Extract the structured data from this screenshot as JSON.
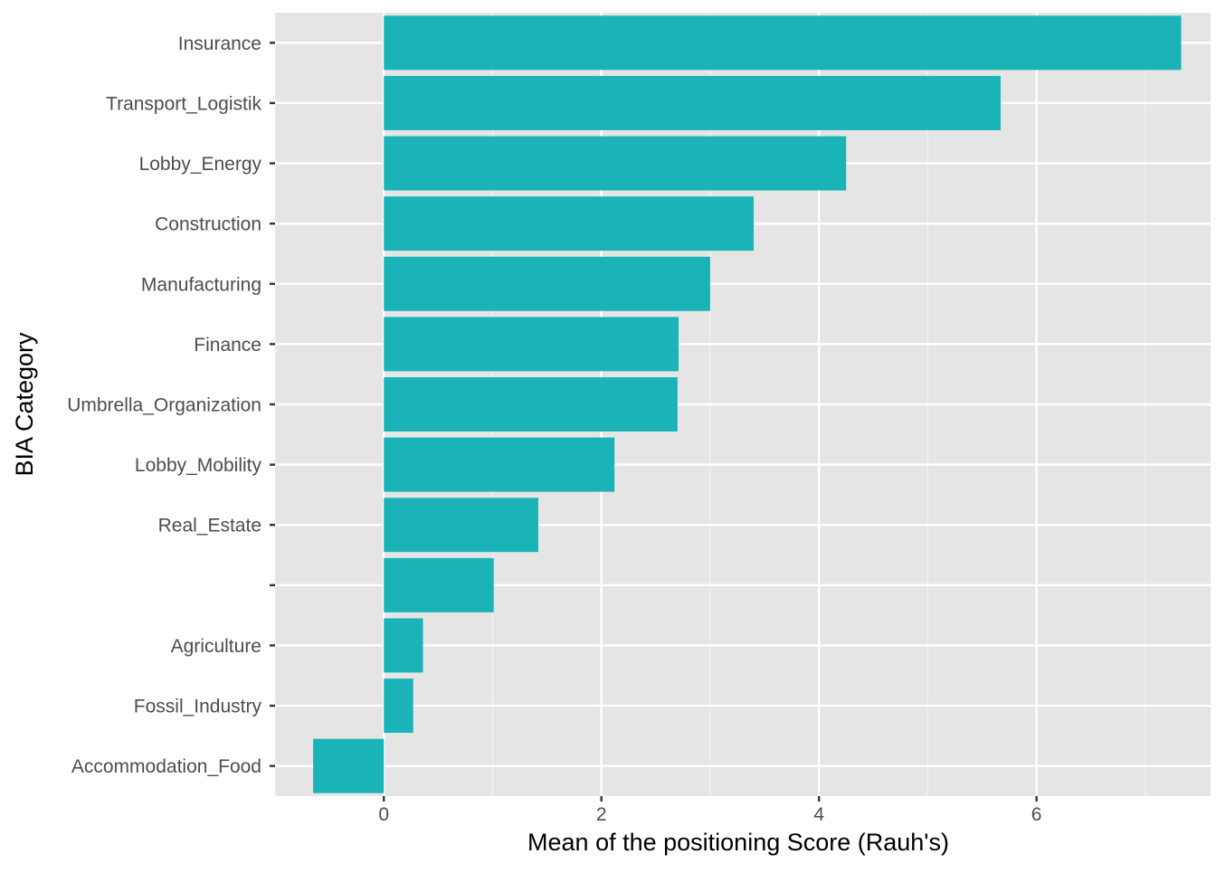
{
  "chart_data": {
    "type": "bar",
    "orientation": "horizontal",
    "title": "",
    "xlabel": "Mean of the positioning Score (Rauh's)",
    "ylabel": "BIA Category",
    "categories": [
      "Insurance",
      "Transport_Logistik",
      "Lobby_Energy",
      "Construction",
      "Manufacturing",
      "Finance",
      "Umbrella_Organization",
      "Lobby_Mobility",
      "Real_Estate",
      "",
      "Agriculture",
      "Fossil_Industry",
      "Accommodation_Food"
    ],
    "values": [
      7.33,
      5.67,
      4.25,
      3.4,
      3.0,
      2.71,
      2.7,
      2.12,
      1.42,
      1.01,
      0.36,
      0.27,
      -0.65
    ],
    "xlim": [
      -1.0,
      7.6
    ],
    "xticks": [
      0,
      2,
      4,
      6
    ],
    "grid": true,
    "legend": "none",
    "colors": {
      "bar": "#1AB3B7",
      "panel": "#E5E5E5",
      "grid_major": "#FFFFFF",
      "grid_minor": "#F2F2F2"
    }
  }
}
